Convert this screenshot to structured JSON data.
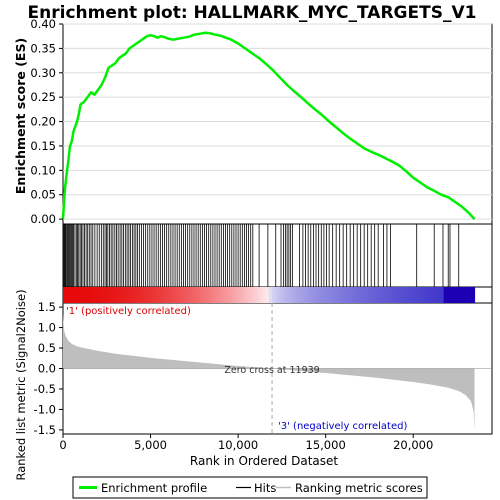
{
  "chart_data": {
    "type": "line",
    "title": "Enrichment plot: HALLMARK_MYC_TARGETS_V1",
    "panels": {
      "es": {
        "ylabel": "Enrichment score (ES)",
        "ylim": [
          -0.01,
          0.4
        ],
        "yticks": [
          "0.00",
          "0.05",
          "0.10",
          "0.15",
          "0.20",
          "0.25",
          "0.30",
          "0.35",
          "0.40"
        ],
        "series": [
          {
            "name": "Enrichment profile",
            "color": "#00ee00",
            "x": [
              0,
              100,
              200,
              300,
              400,
              500,
              600,
              700,
              800,
              900,
              1000,
              1200,
              1400,
              1600,
              1800,
              2000,
              2200,
              2400,
              2600,
              2800,
              3000,
              3200,
              3400,
              3600,
              3800,
              4000,
              4200,
              4400,
              4600,
              4800,
              5000,
              5200,
              5400,
              5600,
              5800,
              6000,
              6300,
              6600,
              6900,
              7200,
              7500,
              7800,
              8100,
              8400,
              8700,
              9000,
              9300,
              9600,
              10000,
              10400,
              10800,
              11200,
              11600,
              12000,
              12400,
              12800,
              13200,
              13600,
              14000,
              14400,
              14800,
              15200,
              15600,
              16000,
              16400,
              16800,
              17200,
              17600,
              18000,
              18400,
              18800,
              19200,
              19600,
              20000,
              20400,
              20800,
              21200,
              21600,
              22000,
              22400,
              22800,
              23200,
              23500
            ],
            "y": [
              0.0,
              0.06,
              0.09,
              0.12,
              0.15,
              0.16,
              0.18,
              0.19,
              0.2,
              0.215,
              0.235,
              0.24,
              0.25,
              0.26,
              0.255,
              0.265,
              0.275,
              0.29,
              0.31,
              0.315,
              0.32,
              0.33,
              0.335,
              0.34,
              0.35,
              0.355,
              0.36,
              0.365,
              0.37,
              0.375,
              0.377,
              0.375,
              0.372,
              0.375,
              0.373,
              0.37,
              0.368,
              0.37,
              0.372,
              0.374,
              0.378,
              0.38,
              0.382,
              0.381,
              0.378,
              0.376,
              0.372,
              0.368,
              0.36,
              0.35,
              0.34,
              0.33,
              0.318,
              0.305,
              0.29,
              0.275,
              0.262,
              0.25,
              0.237,
              0.225,
              0.213,
              0.2,
              0.188,
              0.176,
              0.165,
              0.155,
              0.145,
              0.138,
              0.132,
              0.125,
              0.118,
              0.11,
              0.098,
              0.085,
              0.075,
              0.065,
              0.058,
              0.05,
              0.045,
              0.035,
              0.025,
              0.012,
              0.0
            ]
          }
        ]
      },
      "hits": {
        "name": "Hits",
        "color": "#000000",
        "positions": [
          20,
          60,
          110,
          150,
          210,
          260,
          310,
          370,
          420,
          480,
          540,
          600,
          680,
          760,
          830,
          900,
          980,
          1060,
          1140,
          1230,
          1320,
          1410,
          1500,
          1600,
          1700,
          1820,
          1950,
          2070,
          2190,
          2300,
          2400,
          2480,
          2560,
          2650,
          2750,
          2850,
          2960,
          3050,
          3150,
          3260,
          3360,
          3460,
          3560,
          3660,
          3760,
          3860,
          3960,
          4060,
          4160,
          4260,
          4360,
          4480,
          4600,
          4720,
          4840,
          4960,
          5080,
          5200,
          5320,
          5440,
          5560,
          5680,
          5800,
          5920,
          6040,
          6160,
          6280,
          6400,
          6520,
          6640,
          6760,
          6880,
          7000,
          7120,
          7240,
          7360,
          7480,
          7600,
          7720,
          7840,
          7960,
          8080,
          8200,
          8320,
          8440,
          8560,
          8680,
          8800,
          8920,
          9040,
          9160,
          9280,
          9400,
          9520,
          9640,
          9760,
          9880,
          10000,
          10120,
          10240,
          10360,
          10480,
          10600,
          10720,
          10840,
          11200,
          11700,
          12150,
          12450,
          12600,
          12700,
          12800,
          12900,
          13000,
          13100,
          13500,
          13700,
          13850,
          14000,
          14150,
          14300,
          14450,
          14600,
          14750,
          14900,
          15050,
          15200,
          15400,
          15600,
          15800,
          16000,
          16200,
          16400,
          16600,
          16800,
          17000,
          17200,
          17400,
          17600,
          17800,
          18000,
          18300,
          18500,
          18700,
          20200,
          21200,
          21700,
          22000,
          22100,
          22600
        ]
      },
      "metric": {
        "name": "Ranking metric scores",
        "ylabel": "Ranked list metric (Signal2Noise)",
        "ylim": [
          -1.6,
          1.6
        ],
        "yticks": [
          "-1.5",
          "-1.0",
          "-0.5",
          "0.0",
          "0.5",
          "1.0",
          "1.5"
        ],
        "color": "#bebebe",
        "x": [
          0,
          50,
          150,
          300,
          500,
          800,
          1200,
          2000,
          3000,
          4000,
          5000,
          6000,
          7000,
          8000,
          9000,
          10000,
          11000,
          11939,
          13000,
          14000,
          15000,
          16000,
          17000,
          18000,
          19000,
          20000,
          21000,
          22000,
          22600,
          23000,
          23300,
          23450,
          23500
        ],
        "y": [
          1.35,
          0.95,
          0.8,
          0.68,
          0.6,
          0.54,
          0.5,
          0.43,
          0.36,
          0.31,
          0.26,
          0.22,
          0.18,
          0.14,
          0.1,
          0.06,
          0.03,
          0.0,
          -0.04,
          -0.08,
          -0.11,
          -0.15,
          -0.19,
          -0.23,
          -0.28,
          -0.33,
          -0.39,
          -0.47,
          -0.55,
          -0.65,
          -0.8,
          -1.05,
          -1.5
        ]
      }
    },
    "x_axis": {
      "label": "Rank in Ordered Dataset",
      "range": [
        0,
        24500
      ],
      "ticks": [
        0,
        5000,
        10000,
        15000,
        20000
      ],
      "tick_labels": [
        "0",
        "5,000",
        "10,000",
        "15,000",
        "20,000"
      ]
    },
    "annotations": {
      "positive": "'1' (positively correlated)",
      "negative": "'3' (negatively correlated)",
      "zero_cross": "Zero cross at 11939",
      "zero_cross_x": 11939
    },
    "legend": {
      "placement": "bottom",
      "items": [
        "Enrichment profile",
        "Hits",
        "Ranking metric scores"
      ]
    }
  }
}
